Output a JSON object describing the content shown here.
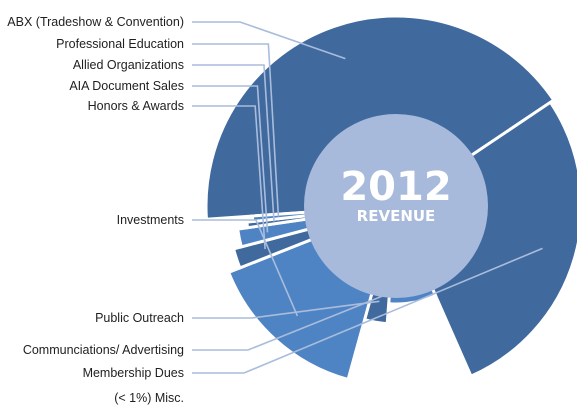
{
  "chart_data": {
    "type": "pie",
    "title": "2012",
    "subtitle": "REVENUE",
    "slices": [
      {
        "label": "ABX (Tradeshow & Convention)",
        "value": 41.7,
        "color": "#40699e"
      },
      {
        "label": "Membership Dues",
        "value": 27.8,
        "color": "#40699e"
      },
      {
        "label": "Communciations/ Advertising",
        "value": 7.8,
        "color": "#4f84c4"
      },
      {
        "label": "Public Outreach",
        "value": 3.1,
        "color": "#40699e"
      },
      {
        "label": "Investments",
        "value": 14.7,
        "color": "#4f84c4"
      },
      {
        "label": "Honors & Awards",
        "value": 1.9,
        "color": "#40699e"
      },
      {
        "label": "AIA Document Sales",
        "value": 1.8,
        "color": "#4f84c4"
      },
      {
        "label": "Allied Organizations",
        "value": 0.6,
        "color": "#40699e"
      },
      {
        "label": "Professional Education",
        "value": 0.6,
        "color": "#4f84c4"
      }
    ],
    "misc_label": "(< 1%) Misc.",
    "legend": "left",
    "colors": {
      "dark": "#40699e",
      "light": "#4f84c4",
      "center": "#a7badb",
      "leader": "#a9bcdc"
    }
  }
}
